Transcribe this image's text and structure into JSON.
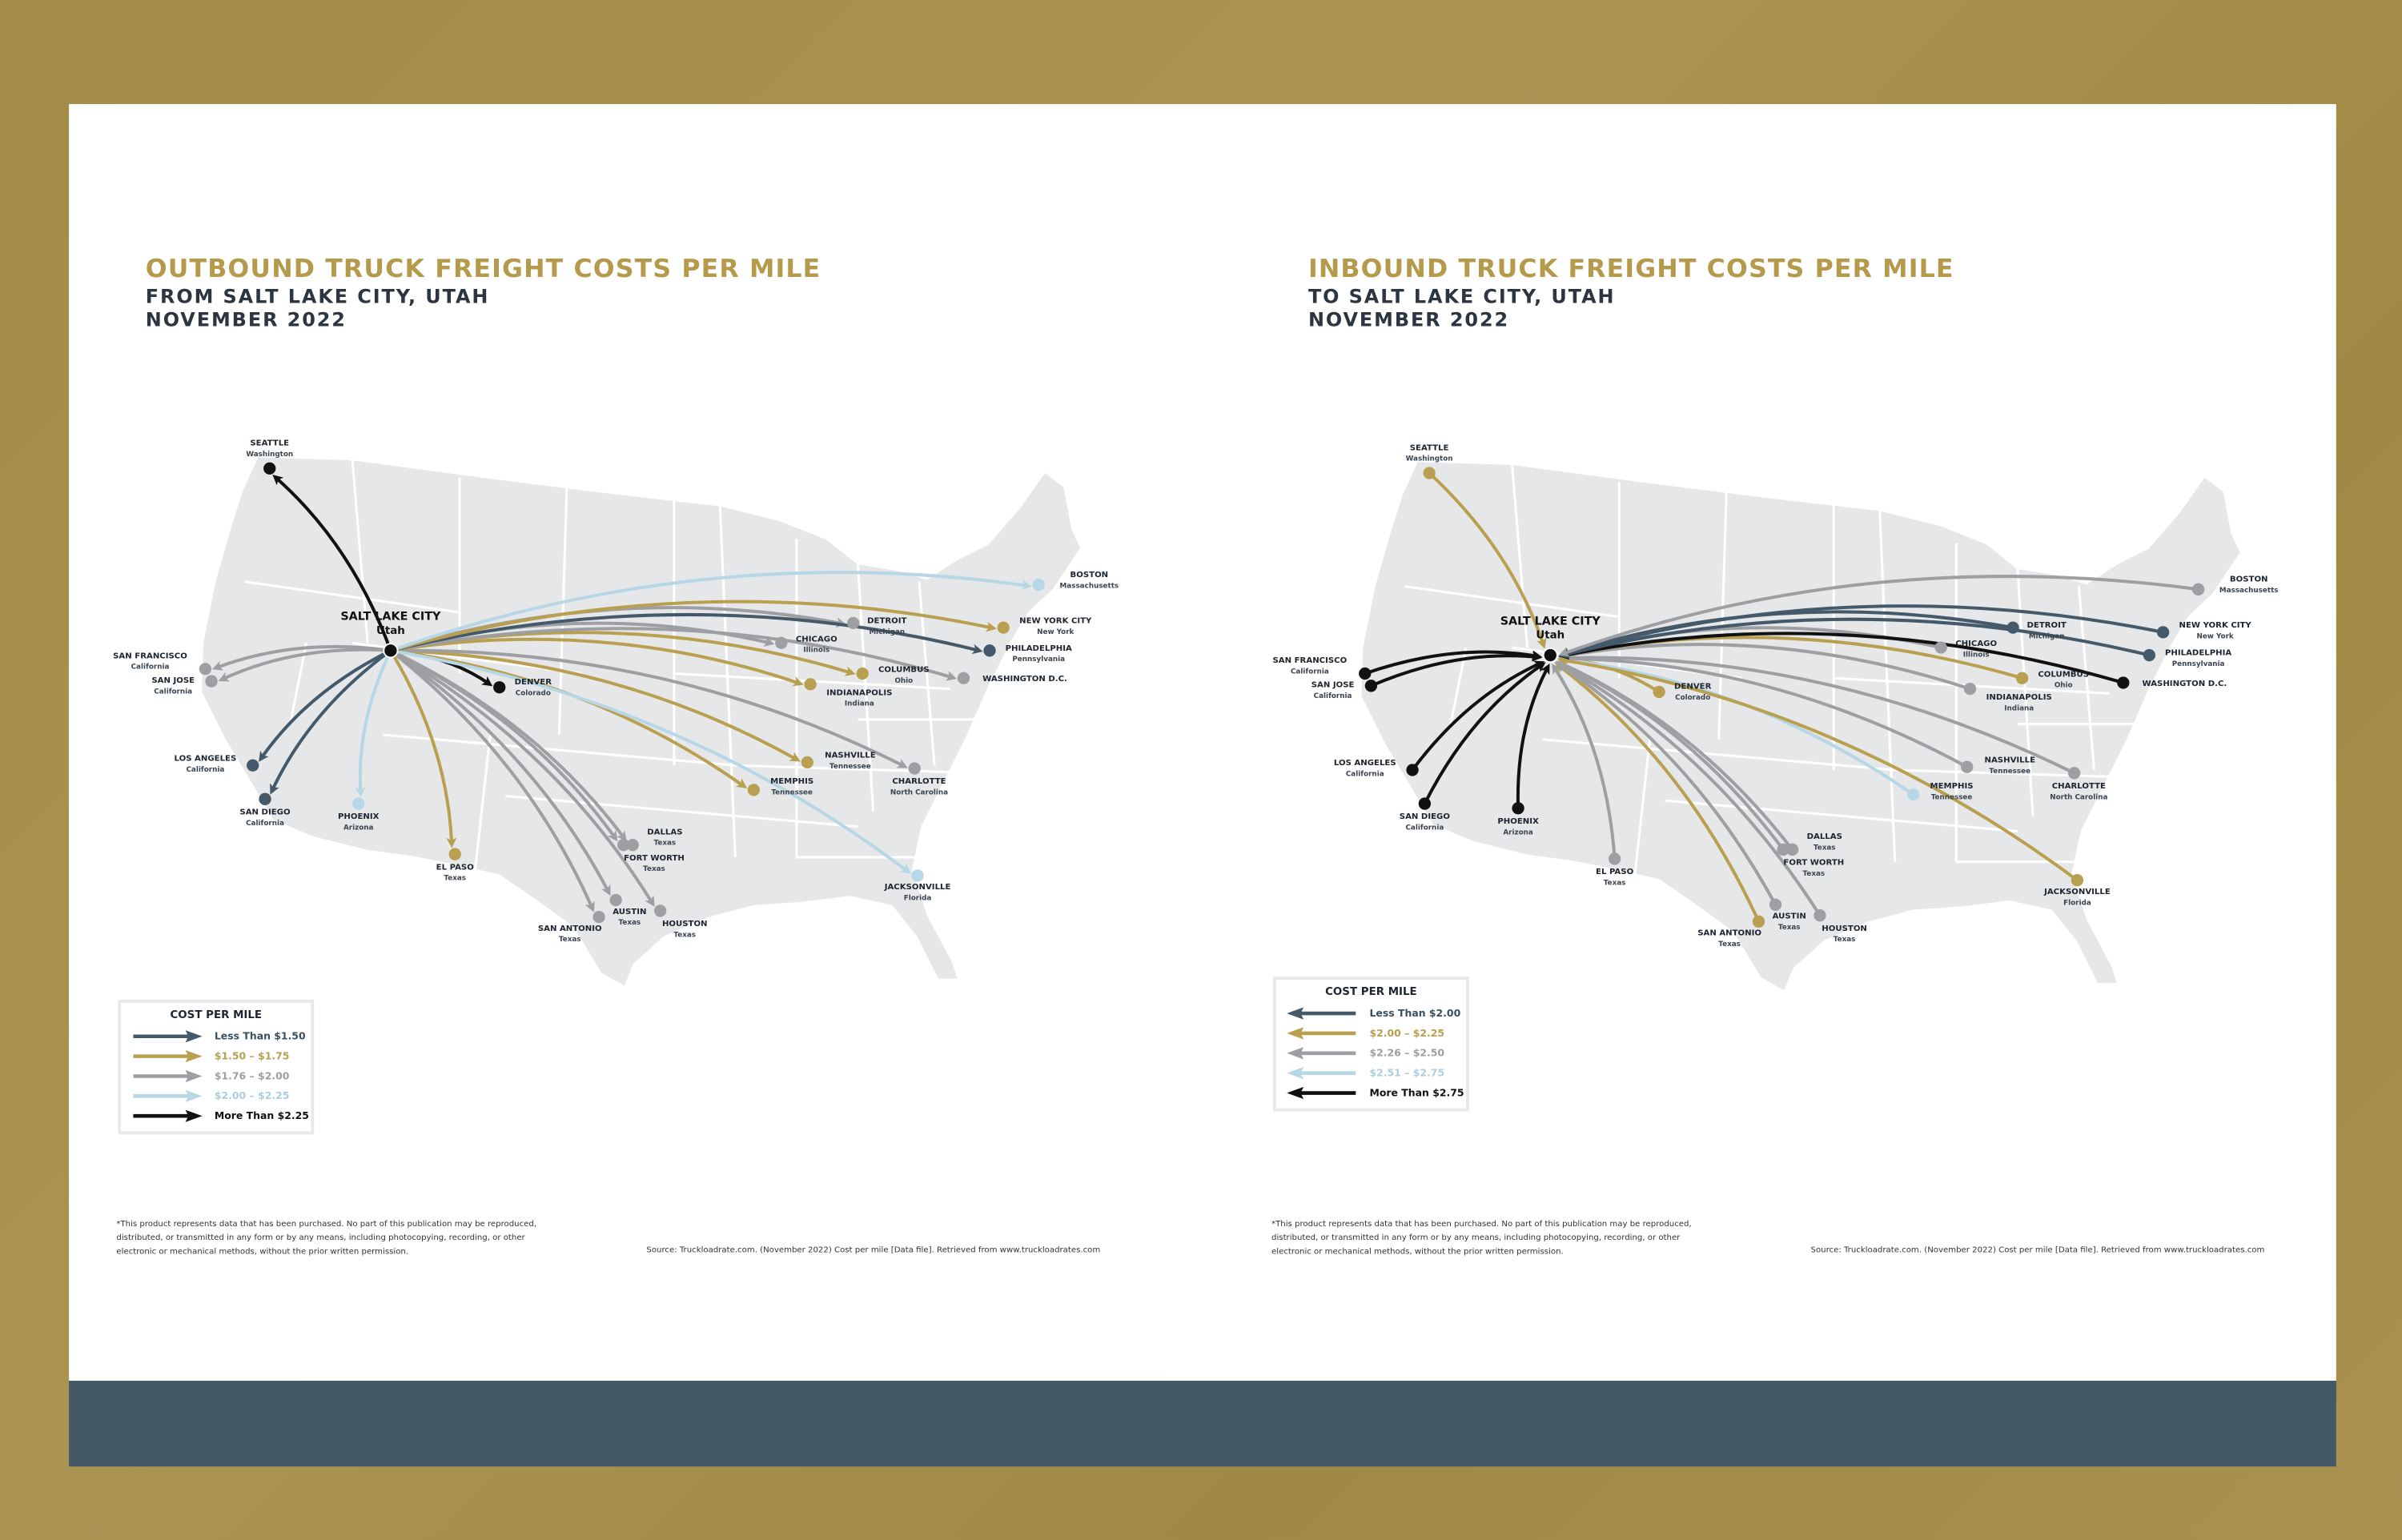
{
  "colors": {
    "background": "#a48c4a",
    "title_gold": "#b59a4c",
    "footer_band": "#435968",
    "map_land": "#e6e7e8",
    "tiers": [
      "#44596a",
      "#b9a050",
      "#9d9fa3",
      "#b8d7e6",
      "#111111"
    ]
  },
  "outbound": {
    "title": "OUTBOUND TRUCK FREIGHT COSTS PER MILE",
    "subtitle": "FROM SALT LAKE CITY, UTAH",
    "date": "NOVEMBER 2022",
    "hub": {
      "name": "SALT LAKE CITY",
      "state": "Utah"
    },
    "legend": {
      "title": "COST PER MILE",
      "tiers": [
        "Less Than $1.50",
        "$1.50 – $1.75",
        "$1.76 – $2.00",
        "$2.00 – $2.25",
        "More Than $2.25"
      ]
    },
    "routes": [
      {
        "city": "SEATTLE",
        "state": "Washington",
        "tier": 4
      },
      {
        "city": "SAN FRANCISCO",
        "state": "California",
        "tier": 2
      },
      {
        "city": "SAN JOSE",
        "state": "California",
        "tier": 2
      },
      {
        "city": "LOS ANGELES",
        "state": "California",
        "tier": 0
      },
      {
        "city": "SAN DIEGO",
        "state": "California",
        "tier": 0
      },
      {
        "city": "PHOENIX",
        "state": "Arizona",
        "tier": 3
      },
      {
        "city": "EL PASO",
        "state": "Texas",
        "tier": 1
      },
      {
        "city": "DENVER",
        "state": "Colorado",
        "tier": 4
      },
      {
        "city": "SAN ANTONIO",
        "state": "Texas",
        "tier": 2
      },
      {
        "city": "AUSTIN",
        "state": "Texas",
        "tier": 2
      },
      {
        "city": "HOUSTON",
        "state": "Texas",
        "tier": 2
      },
      {
        "city": "DALLAS",
        "state": "Texas",
        "tier": 2
      },
      {
        "city": "FORT WORTH",
        "state": "Texas",
        "tier": 2
      },
      {
        "city": "MEMPHIS",
        "state": "Tennessee",
        "tier": 1
      },
      {
        "city": "NASHVILLE",
        "state": "Tennessee",
        "tier": 1
      },
      {
        "city": "CHARLOTTE",
        "state": "North Carolina",
        "tier": 2
      },
      {
        "city": "JACKSONVILLE",
        "state": "Florida",
        "tier": 3
      },
      {
        "city": "INDIANAPOLIS",
        "state": "Indiana",
        "tier": 1
      },
      {
        "city": "COLUMBUS",
        "state": "Ohio",
        "tier": 1
      },
      {
        "city": "CHICAGO",
        "state": "Illinois",
        "tier": 2
      },
      {
        "city": "DETROIT",
        "state": "Michigan",
        "tier": 2
      },
      {
        "city": "WASHINGTON D.C.",
        "state": "",
        "tier": 2
      },
      {
        "city": "PHILADELPHIA",
        "state": "Pennsylvania",
        "tier": 0
      },
      {
        "city": "NEW YORK CITY",
        "state": "New York",
        "tier": 1
      },
      {
        "city": "BOSTON",
        "state": "Massachusetts",
        "tier": 3
      }
    ]
  },
  "inbound": {
    "title": "INBOUND TRUCK FREIGHT COSTS PER MILE",
    "subtitle": "TO SALT LAKE CITY, UTAH",
    "date": "NOVEMBER 2022",
    "hub": {
      "name": "SALT LAKE CITY",
      "state": "Utah"
    },
    "legend": {
      "title": "COST PER MILE",
      "tiers": [
        "Less Than $2.00",
        "$2.00 – $2.25",
        "$2.26 – $2.50",
        "$2.51 – $2.75",
        "More Than $2.75"
      ]
    },
    "routes": [
      {
        "city": "SEATTLE",
        "state": "Washington",
        "tier": 1
      },
      {
        "city": "SAN FRANCISCO",
        "state": "California",
        "tier": 4
      },
      {
        "city": "SAN JOSE",
        "state": "California",
        "tier": 4
      },
      {
        "city": "LOS ANGELES",
        "state": "California",
        "tier": 4
      },
      {
        "city": "SAN DIEGO",
        "state": "California",
        "tier": 4
      },
      {
        "city": "PHOENIX",
        "state": "Arizona",
        "tier": 4
      },
      {
        "city": "EL PASO",
        "state": "Texas",
        "tier": 2
      },
      {
        "city": "DENVER",
        "state": "Colorado",
        "tier": 1
      },
      {
        "city": "SAN ANTONIO",
        "state": "Texas",
        "tier": 1
      },
      {
        "city": "AUSTIN",
        "state": "Texas",
        "tier": 2
      },
      {
        "city": "HOUSTON",
        "state": "Texas",
        "tier": 2
      },
      {
        "city": "DALLAS",
        "state": "Texas",
        "tier": 2
      },
      {
        "city": "FORT WORTH",
        "state": "Texas",
        "tier": 2
      },
      {
        "city": "MEMPHIS",
        "state": "Tennessee",
        "tier": 3
      },
      {
        "city": "NASHVILLE",
        "state": "Tennessee",
        "tier": 2
      },
      {
        "city": "CHARLOTTE",
        "state": "North Carolina",
        "tier": 2
      },
      {
        "city": "JACKSONVILLE",
        "state": "Florida",
        "tier": 1
      },
      {
        "city": "INDIANAPOLIS",
        "state": "Indiana",
        "tier": 2
      },
      {
        "city": "COLUMBUS",
        "state": "Ohio",
        "tier": 1
      },
      {
        "city": "CHICAGO",
        "state": "Illinois",
        "tier": 2
      },
      {
        "city": "DETROIT",
        "state": "Michigan",
        "tier": 0
      },
      {
        "city": "WASHINGTON D.C.",
        "state": "",
        "tier": 4
      },
      {
        "city": "PHILADELPHIA",
        "state": "Pennsylvania",
        "tier": 0
      },
      {
        "city": "NEW YORK CITY",
        "state": "New York",
        "tier": 0
      },
      {
        "city": "BOSTON",
        "state": "Massachusetts",
        "tier": 2
      }
    ]
  },
  "footer": {
    "disclaimer_lines": [
      "*This product represents data that has been purchased. No part of this publication may be reproduced,",
      "distributed, or transmitted in any form or by any means, including photocopying, recording, or other",
      "electronic or mechanical methods, without the prior written permission."
    ],
    "source": "Source: Truckloadrate.com. (November 2022) Cost per mile [Data file]. Retrieved from www.truckloadrates.com"
  }
}
